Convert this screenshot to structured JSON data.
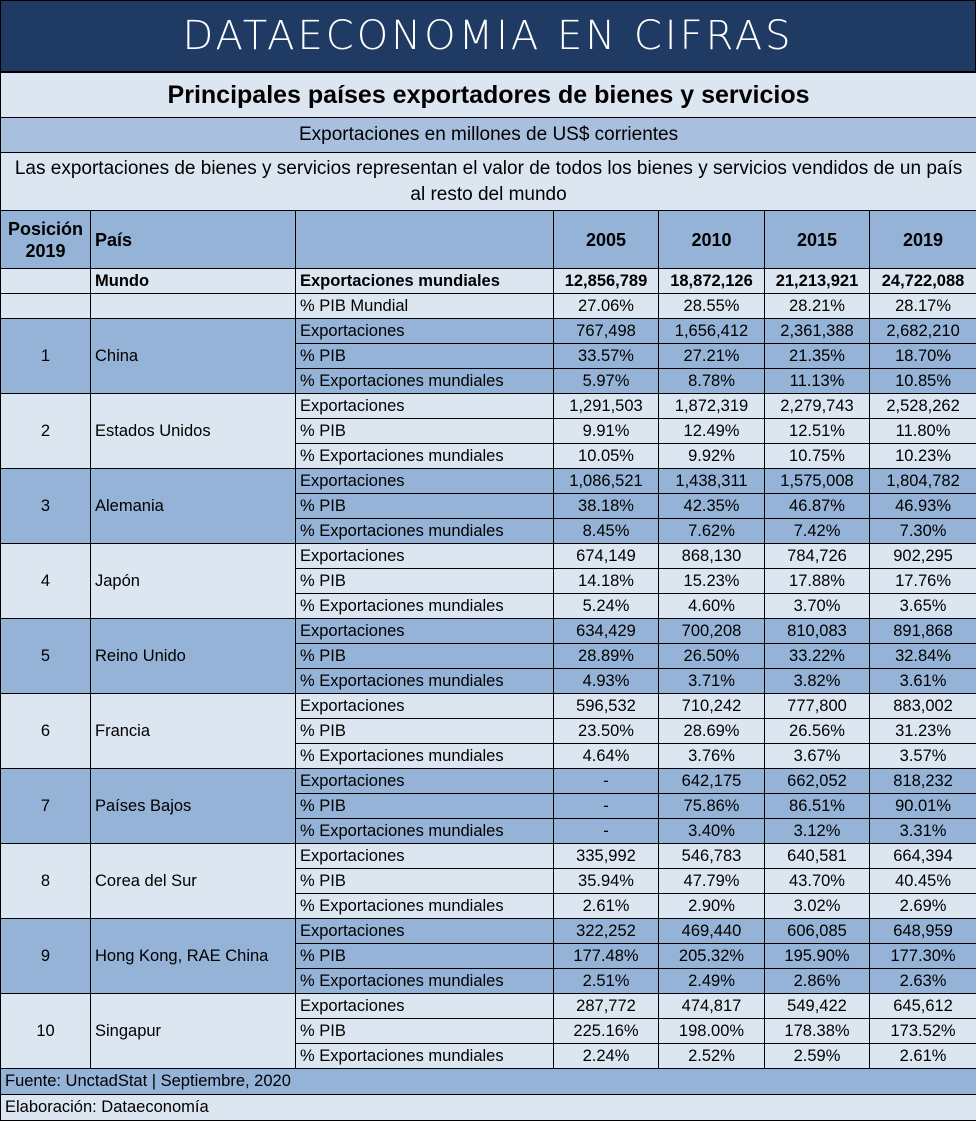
{
  "header": {
    "brand": "DATAECONOMIA EN CIFRAS"
  },
  "title": "Principales países exportadores de bienes y servicios",
  "subtitle": "Exportaciones en millones de US$ corrientes",
  "description": "Las exportaciones de bienes y servicios representan el valor de todos los bienes y servicios vendidos de un país al resto del mundo",
  "columns": {
    "position": "Posición 2019",
    "country": "País",
    "years": [
      "2005",
      "2010",
      "2015",
      "2019"
    ]
  },
  "world": {
    "label": "Mundo",
    "exports_label": "Exportaciones mundiales",
    "exports": [
      "12,856,789",
      "18,872,126",
      "21,213,921",
      "24,722,088"
    ],
    "gdp_label": "% PIB Mundial",
    "gdp": [
      "27.06%",
      "28.55%",
      "28.21%",
      "28.17%"
    ]
  },
  "metric_labels": [
    "Exportaciones",
    "% PIB",
    "% Exportaciones mundiales"
  ],
  "countries": [
    {
      "pos": "1",
      "name": "China",
      "rows": [
        [
          "767,498",
          "1,656,412",
          "2,361,388",
          "2,682,210"
        ],
        [
          "33.57%",
          "27.21%",
          "21.35%",
          "18.70%"
        ],
        [
          "5.97%",
          "8.78%",
          "11.13%",
          "10.85%"
        ]
      ]
    },
    {
      "pos": "2",
      "name": "Estados Unidos",
      "rows": [
        [
          "1,291,503",
          "1,872,319",
          "2,279,743",
          "2,528,262"
        ],
        [
          "9.91%",
          "12.49%",
          "12.51%",
          "11.80%"
        ],
        [
          "10.05%",
          "9.92%",
          "10.75%",
          "10.23%"
        ]
      ]
    },
    {
      "pos": "3",
      "name": "Alemania",
      "rows": [
        [
          "1,086,521",
          "1,438,311",
          "1,575,008",
          "1,804,782"
        ],
        [
          "38.18%",
          "42.35%",
          "46.87%",
          "46.93%"
        ],
        [
          "8.45%",
          "7.62%",
          "7.42%",
          "7.30%"
        ]
      ]
    },
    {
      "pos": "4",
      "name": "Japón",
      "rows": [
        [
          "674,149",
          "868,130",
          "784,726",
          "902,295"
        ],
        [
          "14.18%",
          "15.23%",
          "17.88%",
          "17.76%"
        ],
        [
          "5.24%",
          "4.60%",
          "3.70%",
          "3.65%"
        ]
      ]
    },
    {
      "pos": "5",
      "name": "Reino Unido",
      "rows": [
        [
          "634,429",
          "700,208",
          "810,083",
          "891,868"
        ],
        [
          "28.89%",
          "26.50%",
          "33.22%",
          "32.84%"
        ],
        [
          "4.93%",
          "3.71%",
          "3.82%",
          "3.61%"
        ]
      ]
    },
    {
      "pos": "6",
      "name": "Francia",
      "rows": [
        [
          "596,532",
          "710,242",
          "777,800",
          "883,002"
        ],
        [
          "23.50%",
          "28.69%",
          "26.56%",
          "31.23%"
        ],
        [
          "4.64%",
          "3.76%",
          "3.67%",
          "3.57%"
        ]
      ]
    },
    {
      "pos": "7",
      "name": "Países Bajos",
      "rows": [
        [
          "-",
          "642,175",
          "662,052",
          "818,232"
        ],
        [
          "-",
          "75.86%",
          "86.51%",
          "90.01%"
        ],
        [
          "-",
          "3.40%",
          "3.12%",
          "3.31%"
        ]
      ]
    },
    {
      "pos": "8",
      "name": "Corea del Sur",
      "rows": [
        [
          "335,992",
          "546,783",
          "640,581",
          "664,394"
        ],
        [
          "35.94%",
          "47.79%",
          "43.70%",
          "40.45%"
        ],
        [
          "2.61%",
          "2.90%",
          "3.02%",
          "2.69%"
        ]
      ]
    },
    {
      "pos": "9",
      "name": "Hong Kong, RAE China",
      "rows": [
        [
          "322,252",
          "469,440",
          "606,085",
          "648,959"
        ],
        [
          "177.48%",
          "205.32%",
          "195.90%",
          "177.30%"
        ],
        [
          "2.51%",
          "2.49%",
          "2.86%",
          "2.63%"
        ]
      ]
    },
    {
      "pos": "10",
      "name": "Singapur",
      "rows": [
        [
          "287,772",
          "474,817",
          "549,422",
          "645,612"
        ],
        [
          "225.16%",
          "198.00%",
          "178.38%",
          "173.52%"
        ],
        [
          "2.24%",
          "2.52%",
          "2.59%",
          "2.61%"
        ]
      ]
    }
  ],
  "footer": {
    "source": "Fuente: UnctadStat | Septiembre, 2020",
    "credit": "Elaboración: Dataeconomía"
  },
  "colors": {
    "brand_bg": "#1f3b64",
    "band_dark": "#95b3d7",
    "band_light": "#dce6f1"
  }
}
